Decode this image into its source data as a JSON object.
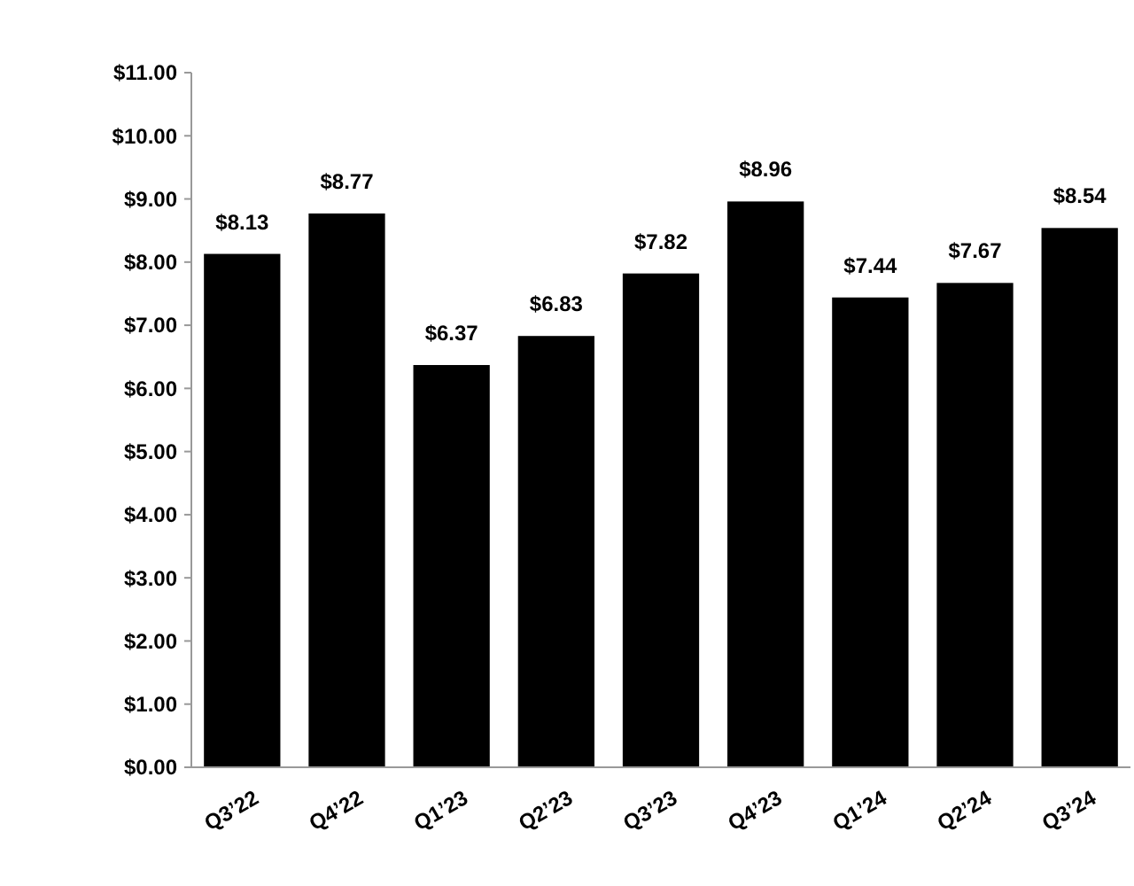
{
  "chart_data": {
    "type": "bar",
    "categories": [
      "Q3’22",
      "Q4’22",
      "Q1’23",
      "Q2’23",
      "Q3’23",
      "Q4’23",
      "Q1’24",
      "Q2’24",
      "Q3’24"
    ],
    "values": [
      8.13,
      8.77,
      6.37,
      6.83,
      7.82,
      8.96,
      7.44,
      7.67,
      8.54
    ],
    "value_labels": [
      "$8.13",
      "$8.77",
      "$6.37",
      "$6.83",
      "$7.82",
      "$8.96",
      "$7.44",
      "$7.67",
      "$8.54"
    ],
    "color": "#000000",
    "ylim": [
      0,
      11
    ],
    "yticks": [
      {
        "value": 0,
        "label": "$0.00"
      },
      {
        "value": 1,
        "label": "$1.00"
      },
      {
        "value": 2,
        "label": "$2.00"
      },
      {
        "value": 3,
        "label": "$3.00"
      },
      {
        "value": 4,
        "label": "$4.00"
      },
      {
        "value": 5,
        "label": "$5.00"
      },
      {
        "value": 6,
        "label": "$6.00"
      },
      {
        "value": 7,
        "label": "$7.00"
      },
      {
        "value": 8,
        "label": "$8.00"
      },
      {
        "value": 9,
        "label": "$9.00"
      },
      {
        "value": 10,
        "label": "$10.00"
      },
      {
        "value": 11,
        "label": "$11.00"
      }
    ],
    "grid": false
  }
}
